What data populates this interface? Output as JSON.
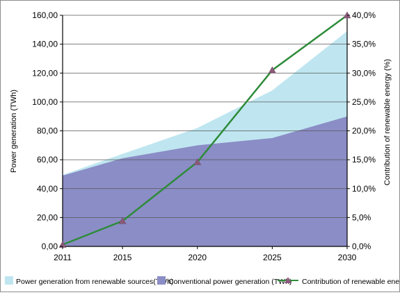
{
  "chart_data": {
    "type": "area",
    "x": [
      2011,
      2015,
      2020,
      2025,
      2030
    ],
    "x_tick_labels": [
      "2011",
      "2015",
      "2020",
      "2025",
      "2030"
    ],
    "ylabel_left": "Power generation (TWh)",
    "ylabel_right": "Contribution of renewable energy (%)",
    "ylim_left": [
      0,
      160
    ],
    "ylim_right": [
      0,
      40
    ],
    "left_tick_labels": [
      "0,00",
      "20,00",
      "40,00",
      "60,00",
      "80,00",
      "100,00",
      "120,00",
      "140,00",
      "160,00"
    ],
    "right_tick_labels": [
      "0,0%",
      "5,0%",
      "10,0%",
      "15,0%",
      "20,0%",
      "25,0%",
      "30,0%",
      "35,0%",
      "40,0%"
    ],
    "grid": true,
    "legend_position": "bottom",
    "series": [
      {
        "name": "Power generation from renewable sources(TWh)",
        "type": "stacked-area",
        "axis": "left",
        "color": "#bfe6f0",
        "values": [
          0.5,
          3,
          12,
          33,
          59
        ],
        "stacked_totals": [
          49.5,
          64,
          82,
          108,
          149
        ]
      },
      {
        "name": "Conventional power generation (TWh)",
        "type": "area",
        "axis": "left",
        "color": "#8b8dc6",
        "values": [
          49,
          61,
          70,
          75,
          90
        ]
      },
      {
        "name": "Contribution of renewable energy (%)",
        "legend_label": "Contribution of renewable enerc",
        "type": "line",
        "axis": "right",
        "color": "#2e8b3a",
        "marker_color": "#8b5a7a",
        "values": [
          0.3,
          4.4,
          14.6,
          30.5,
          40.0
        ]
      }
    ]
  }
}
